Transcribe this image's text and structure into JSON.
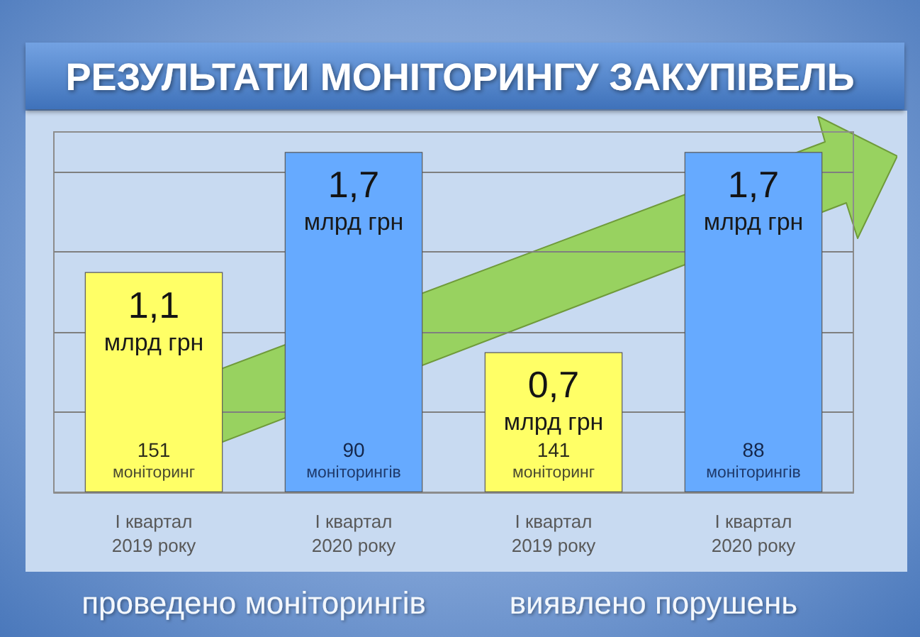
{
  "chart_data": {
    "type": "bar",
    "title": "РЕЗУЛЬТАТИ МОНІТОРИНГУ ЗАКУПІВЕЛЬ",
    "categories": [
      "I квартал\n2019 року",
      "I квартал\n2020 року",
      "I квартал\n2019 року",
      "I квартал\n2020 року"
    ],
    "values": [
      1.1,
      1.7,
      0.7,
      1.7
    ],
    "colors": [
      "#ffff66",
      "#66aaff",
      "#ffff66",
      "#66aaff"
    ],
    "value_labels": [
      "1,1\nмлрд грн",
      "1,7\nмлрд грн",
      "0,7\nмлрд грн",
      "1,7\nмлрд грн"
    ],
    "annotations": [
      "151\nмоніторинг",
      "90\nмоніторингів",
      "141\nмоніторинг",
      "88\nмоніторингів",
      "проведено моніторингів",
      "виявлено порушень"
    ],
    "ylim": [
      0,
      1.8
    ],
    "yticks": [
      {
        "value": 0,
        "label": null
      },
      {
        "value": 0.4,
        "label": null
      },
      {
        "value": 0.8,
        "label": null
      },
      {
        "value": 1.2,
        "label": null
      },
      {
        "value": 1.6,
        "label": null
      }
    ],
    "grid": "y",
    "tick_labels": "x"
  }
}
